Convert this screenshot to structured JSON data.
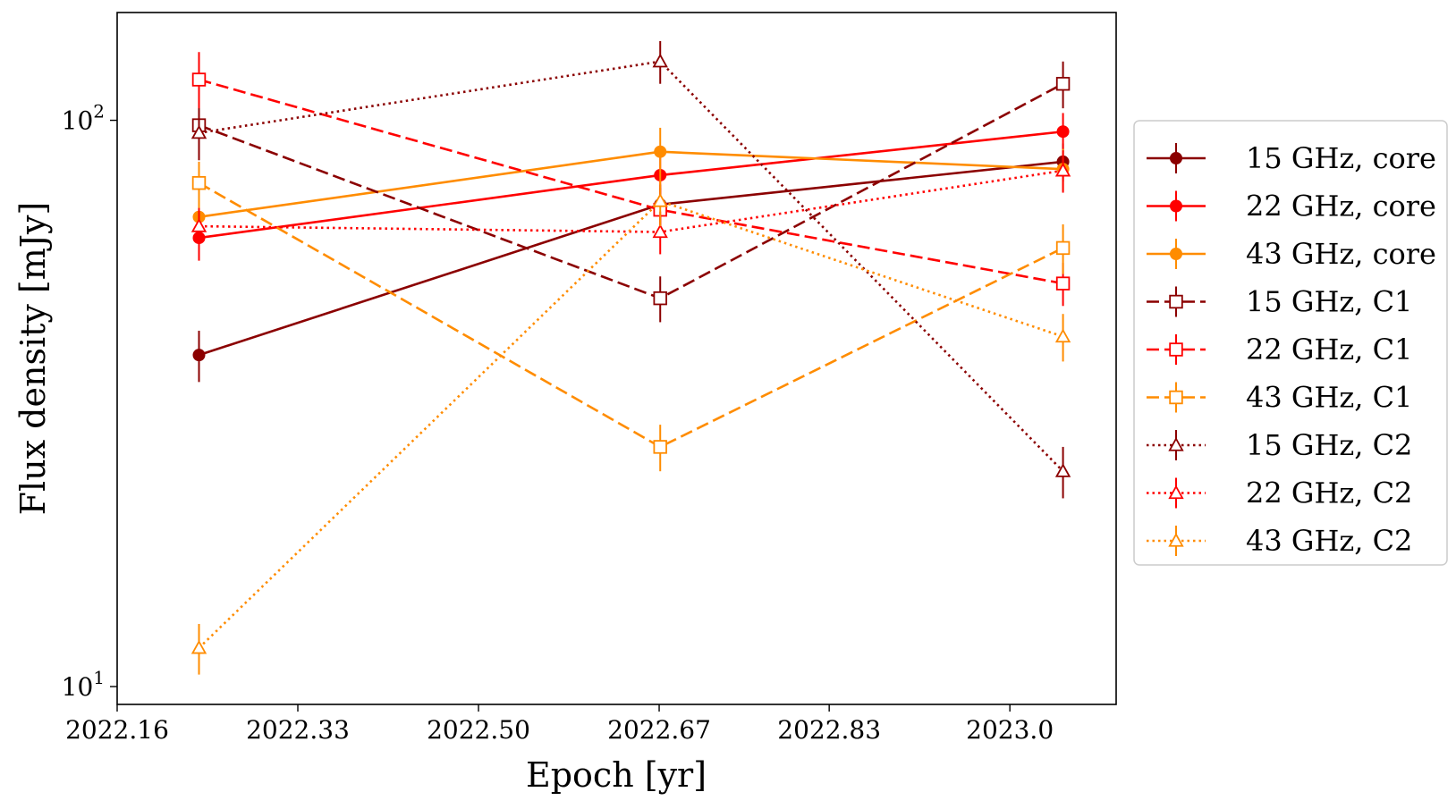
{
  "chart_data": {
    "type": "line",
    "xlabel": "Epoch [yr]",
    "ylabel": "Flux density [mJy]",
    "yscale": "log",
    "xlim": [
      2022.16,
      2023.1
    ],
    "ylim": [
      9.3,
      155
    ],
    "x_ticks": [
      "2022.16",
      "2022.33",
      "2022.50",
      "2022.67",
      "2022.83",
      "2023.0"
    ],
    "x_tick_values": [
      2022.16,
      2022.33,
      2022.5,
      2022.67,
      2022.83,
      2023.0
    ],
    "y_ticks": [
      {
        "base": "10",
        "exp": "1",
        "value": 10
      },
      {
        "base": "10",
        "exp": "2",
        "value": 100
      }
    ],
    "x": [
      2022.237,
      2022.671,
      2023.05
    ],
    "grid": false,
    "legend_position": "outside-right",
    "series": [
      {
        "name": "15 GHz, core",
        "color": "#8B0000",
        "marker": "circle",
        "line": "solid",
        "values": [
          38.5,
          71.0,
          84.5
        ],
        "errors": [
          4.0,
          6.0,
          6.5
        ]
      },
      {
        "name": "22 GHz, core",
        "color": "#FF0000",
        "marker": "circle",
        "line": "solid",
        "values": [
          62.0,
          80.0,
          95.5
        ],
        "errors": [
          5.5,
          6.5,
          7.5
        ]
      },
      {
        "name": "43 GHz, core",
        "color": "#FF8C00",
        "marker": "circle",
        "line": "solid",
        "values": [
          67.5,
          88.0,
          82.0
        ],
        "errors": [
          6.0,
          9.0,
          7.0
        ]
      },
      {
        "name": "15 GHz, C1",
        "color": "#8B0000",
        "marker": "square",
        "line": "dashed",
        "values": [
          98.0,
          48.5,
          116.0
        ],
        "errors": [
          8.0,
          4.5,
          11.0
        ]
      },
      {
        "name": "22 GHz, C1",
        "color": "#FF0000",
        "marker": "square",
        "line": "dashed",
        "values": [
          118.0,
          69.5,
          51.5
        ],
        "errors": [
          14.0,
          6.5,
          4.5
        ]
      },
      {
        "name": "43 GHz, C1",
        "color": "#FF8C00",
        "marker": "square",
        "line": "dashed",
        "values": [
          77.5,
          26.5,
          59.5
        ],
        "errors": [
          7.0,
          2.5,
          6.0
        ]
      },
      {
        "name": "15 GHz, C2",
        "color": "#8B0000",
        "marker": "triangle",
        "line": "dotted",
        "values": [
          95.0,
          127.0,
          24.0
        ],
        "errors": [
          10.0,
          11.0,
          2.5
        ]
      },
      {
        "name": "22 GHz, C2",
        "color": "#FF0000",
        "marker": "triangle",
        "line": "dotted",
        "values": [
          65.0,
          63.5,
          81.5
        ],
        "errors": [
          5.0,
          5.5,
          7.0
        ]
      },
      {
        "name": "43 GHz, C2",
        "color": "#FF8C00",
        "marker": "triangle",
        "line": "dotted",
        "values": [
          11.7,
          72.0,
          41.5
        ],
        "errors": [
          1.2,
          7.0,
          4.0
        ]
      }
    ]
  }
}
